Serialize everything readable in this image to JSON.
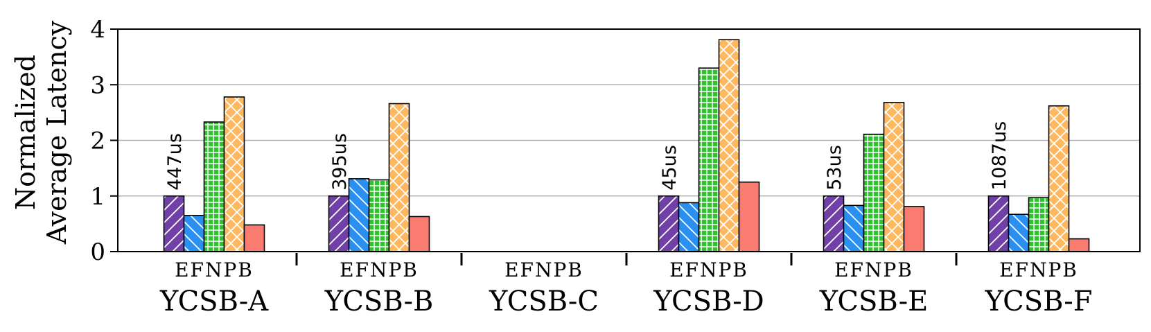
{
  "chart_data": {
    "type": "bar",
    "ylabel_lines": [
      "Normalized",
      "Average Latency"
    ],
    "ylim": [
      0,
      4
    ],
    "yticks": [
      "0",
      "1",
      "2",
      "3",
      "4"
    ],
    "grid": "horizontal",
    "groups": [
      {
        "name": "YCSB-A",
        "bar_letters": "EFNPB",
        "baseline_label": "447us",
        "values": [
          1.0,
          0.65,
          2.33,
          2.78,
          0.48
        ]
      },
      {
        "name": "YCSB-B",
        "bar_letters": "EFNPB",
        "baseline_label": "395us",
        "values": [
          1.0,
          1.31,
          1.29,
          2.66,
          0.63
        ]
      },
      {
        "name": "YCSB-C",
        "bar_letters": "EFNPB",
        "baseline_label": "",
        "values": [
          0,
          0,
          0,
          0,
          0
        ]
      },
      {
        "name": "YCSB-D",
        "bar_letters": "EFNPB",
        "baseline_label": "45us",
        "values": [
          1.0,
          0.88,
          3.3,
          3.81,
          1.25
        ]
      },
      {
        "name": "YCSB-E",
        "bar_letters": "EFNPB",
        "baseline_label": "53us",
        "values": [
          1.0,
          0.83,
          2.11,
          2.68,
          0.81
        ]
      },
      {
        "name": "YCSB-F",
        "bar_letters": "EFNPB",
        "baseline_label": "1087us",
        "values": [
          1.0,
          0.67,
          0.97,
          2.62,
          0.23
        ]
      }
    ],
    "series_colors": [
      "#7040a8",
      "#2b8ff0",
      "#30c030",
      "#ffb860",
      "#fa7b70"
    ],
    "series_patterns": [
      "diagonal",
      "back-diagonal",
      "grid",
      "crosshatch",
      "solid"
    ]
  }
}
